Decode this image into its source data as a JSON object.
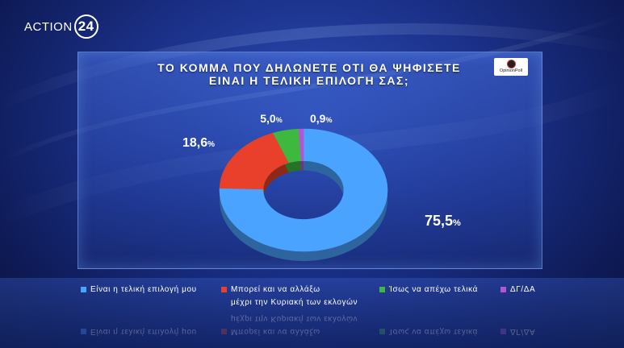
{
  "channel": {
    "name": "ACTION",
    "number": "24"
  },
  "pollster": "OpinionPoll",
  "colors": {
    "accent": "#4aa3ff"
  },
  "chart_data": {
    "type": "pie",
    "style": "donut",
    "title_lines": [
      "ΤΟ ΚΟΜΜΑ ΠΟΥ ΔΗΛΩΝΕΤΕ ΟΤΙ ΘΑ ΨΗΦΙΣΕΤΕ",
      "ΕΙΝΑΙ Η ΤΕΛΙΚΗ ΕΠΙΛΟΓΗ ΣΑΣ;"
    ],
    "slices": [
      {
        "name": "Είναι η τελική επιλογή μου",
        "value": 75.5,
        "value_text": "75,5",
        "color": "#4aa3ff"
      },
      {
        "name": "Μπορεί και να αλλάξω μέχρι την Κυριακή των εκλογών",
        "name_lines": [
          "Μπορεί και να αλλάξω",
          "μέχρι την Κυριακή των εκλογών"
        ],
        "value": 18.6,
        "value_text": "18,6",
        "color": "#e8402a"
      },
      {
        "name": "Ίσως να απέχω τελικά",
        "value": 5.0,
        "value_text": "5,0",
        "color": "#3fb83f"
      },
      {
        "name": "ΔΓ/ΔΑ",
        "value": 0.9,
        "value_text": "0,9",
        "color": "#b455d6"
      }
    ],
    "unit": "%",
    "legend": "bottom"
  }
}
